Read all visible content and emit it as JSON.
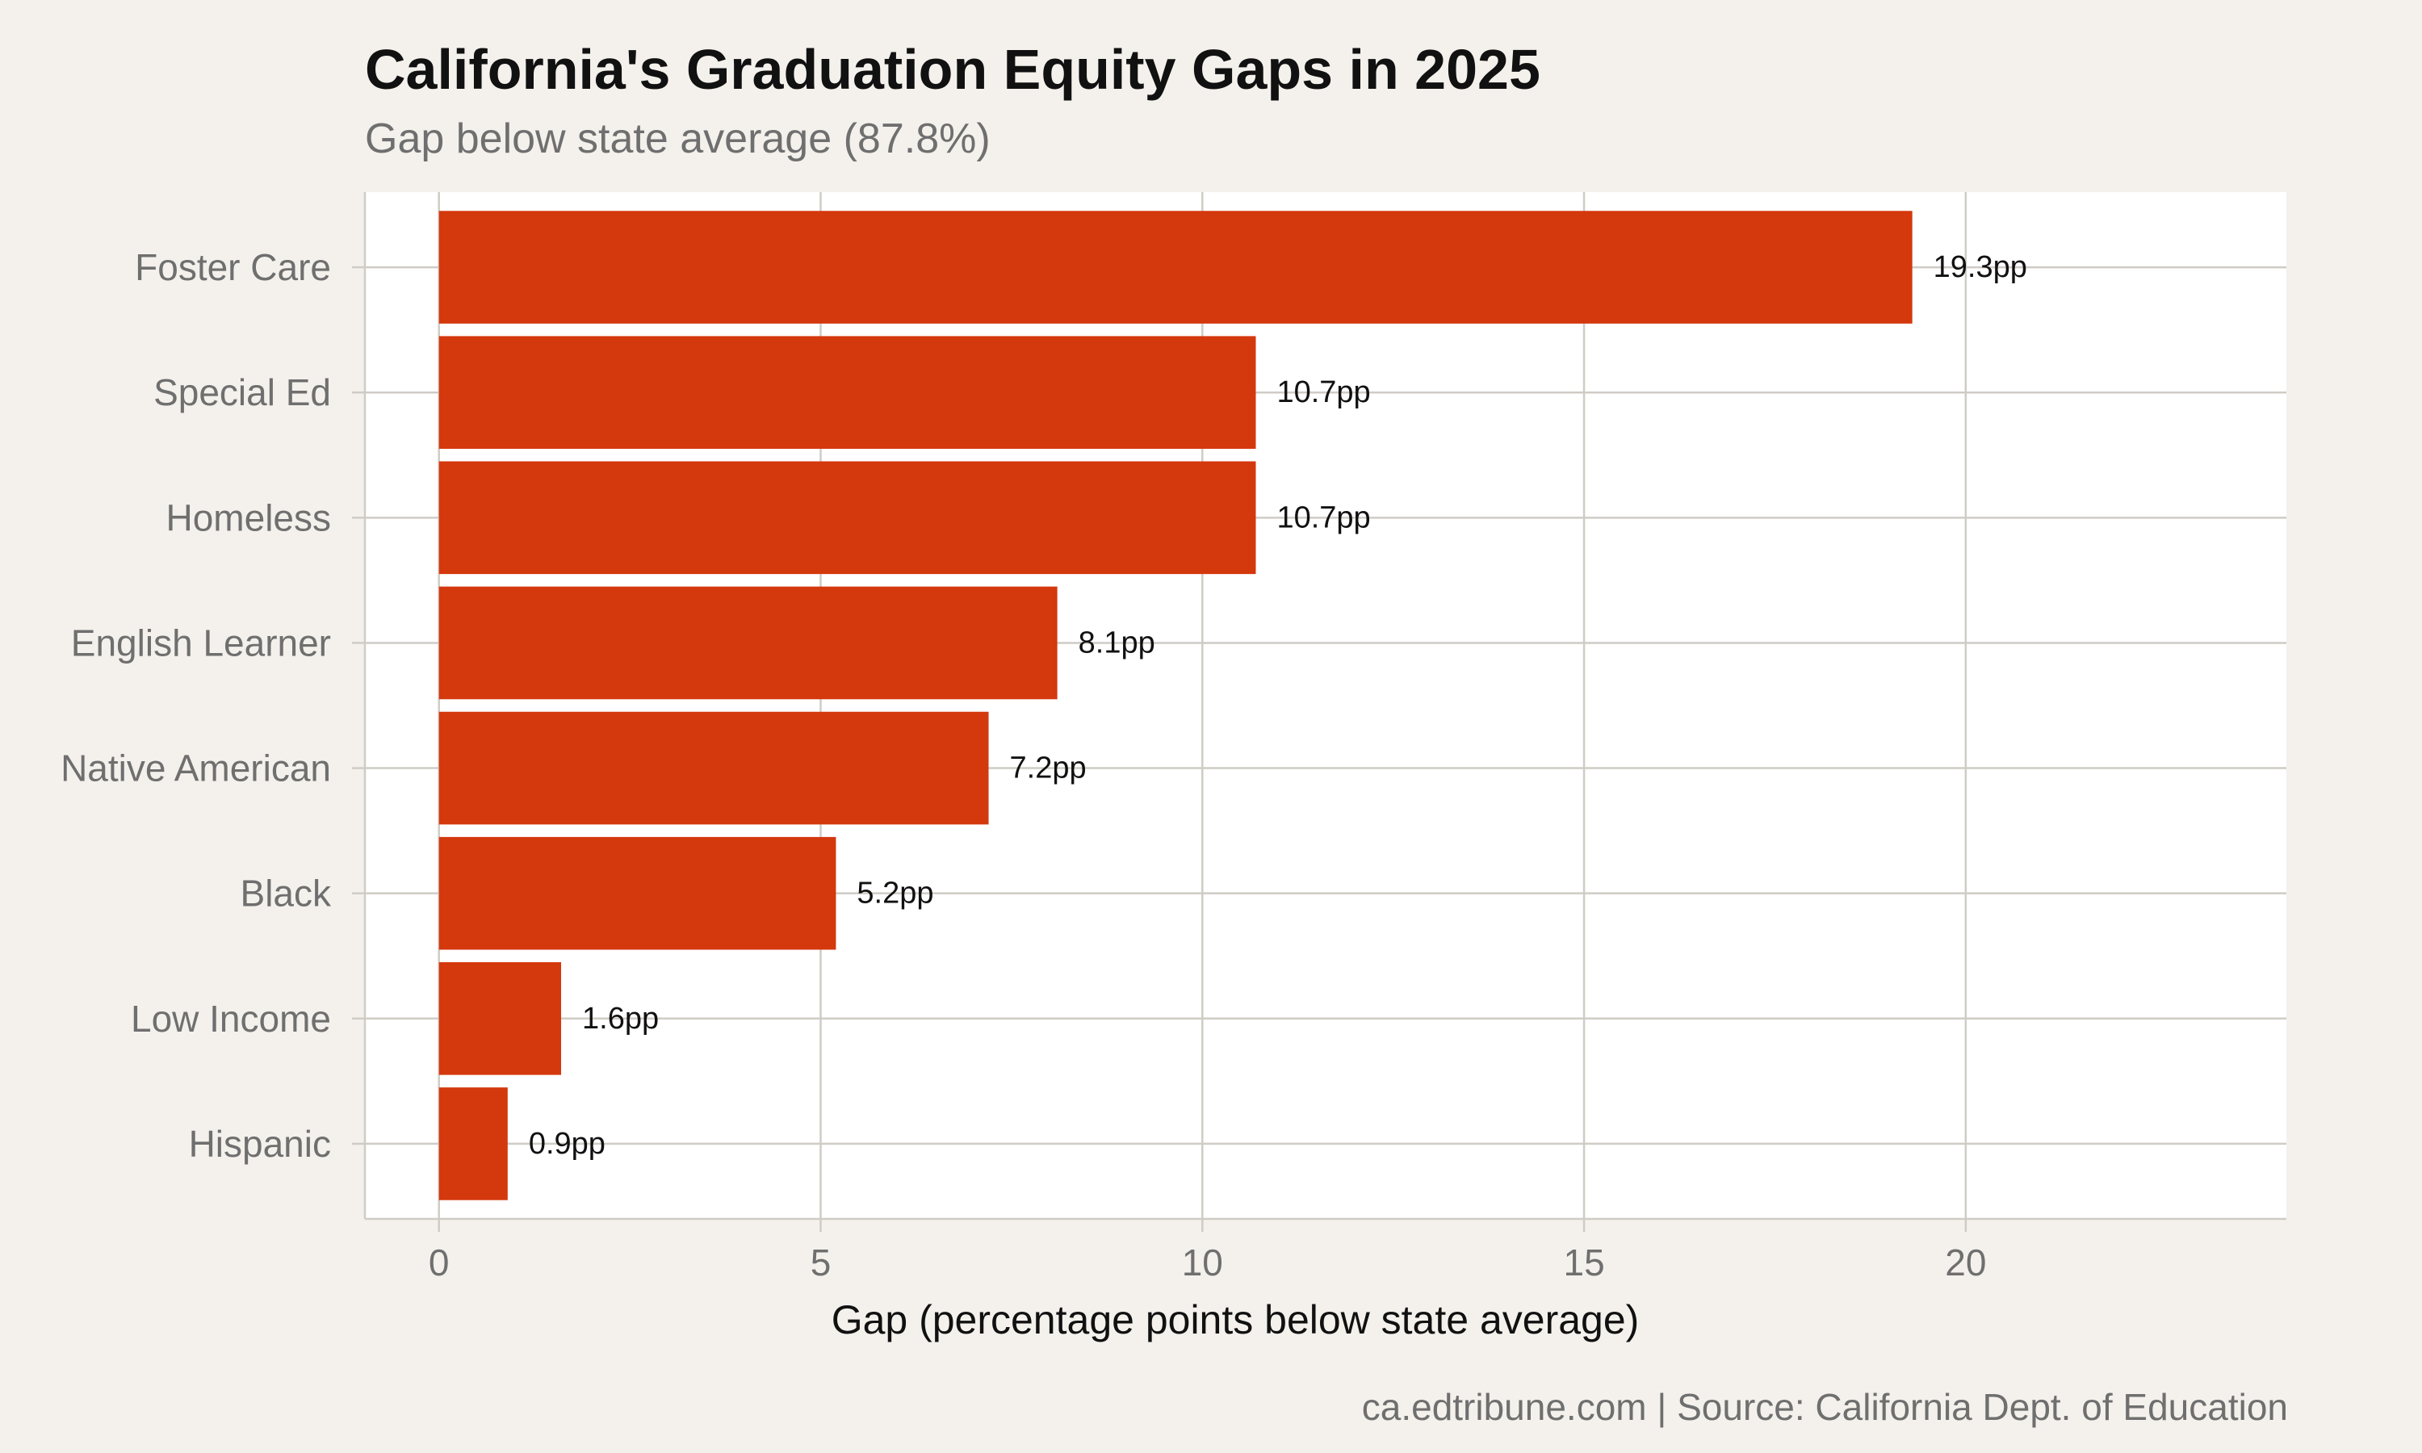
{
  "chart_data": {
    "type": "bar",
    "orientation": "horizontal",
    "title": "California's Graduation Equity Gaps in 2025",
    "subtitle": "Gap below state average (87.8%)",
    "caption": "ca.edtribune.com | Source: California Dept. of Education",
    "xlabel": "Gap (percentage points below state average)",
    "ylabel": "",
    "categories": [
      "Foster Care",
      "Special Ed",
      "Homeless",
      "English Learner",
      "Native American",
      "Black",
      "Low Income",
      "Hispanic"
    ],
    "values": [
      19.3,
      10.7,
      10.7,
      8.1,
      7.2,
      5.2,
      1.6,
      0.9
    ],
    "value_labels": [
      "19.3pp",
      "10.7pp",
      "10.7pp",
      "8.1pp",
      "7.2pp",
      "5.2pp",
      "1.6pp",
      "0.9pp"
    ],
    "xlim": [
      -0.97,
      24.2
    ],
    "xticks": [
      0,
      5,
      10,
      15,
      20
    ],
    "xtick_labels": [
      "0",
      "5",
      "10",
      "15",
      "20"
    ],
    "grid": true,
    "bar_color": "#d4380d",
    "plot_background": "#ffffff",
    "page_background": "#f4f1ec",
    "grid_color": "#cfccc5"
  }
}
